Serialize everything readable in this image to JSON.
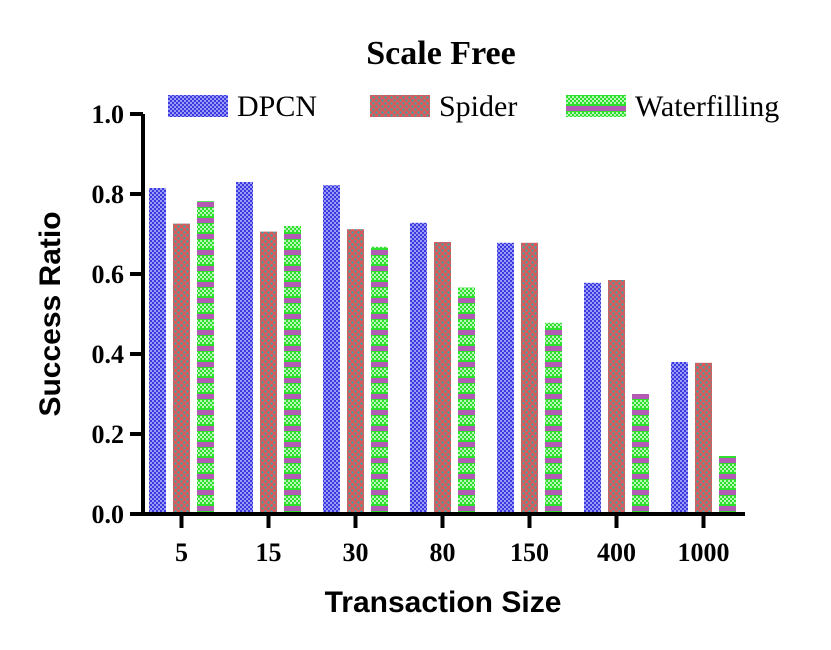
{
  "chart_data": {
    "type": "bar",
    "title": "Scale Free",
    "xlabel": "Transaction Size",
    "ylabel": "Success Ratio",
    "categories": [
      "5",
      "15",
      "30",
      "80",
      "150",
      "400",
      "1000"
    ],
    "ylim": [
      0,
      1.0
    ],
    "yticks": [
      "0.0",
      "0.2",
      "0.4",
      "0.6",
      "0.8",
      "1.0"
    ],
    "legend_position": "top",
    "grid": false,
    "series": [
      {
        "name": "DPCN",
        "color": "#3a3ae0",
        "values": [
          0.815,
          0.83,
          0.822,
          0.728,
          0.678,
          0.578,
          0.38
        ]
      },
      {
        "name": "Spider",
        "color": "#e05050",
        "values": [
          0.726,
          0.706,
          0.712,
          0.68,
          0.678,
          0.585,
          0.378
        ]
      },
      {
        "name": "Waterfilling",
        "color": "#2ee02e",
        "values": [
          0.782,
          0.72,
          0.668,
          0.566,
          0.478,
          0.3,
          0.145
        ]
      }
    ]
  }
}
